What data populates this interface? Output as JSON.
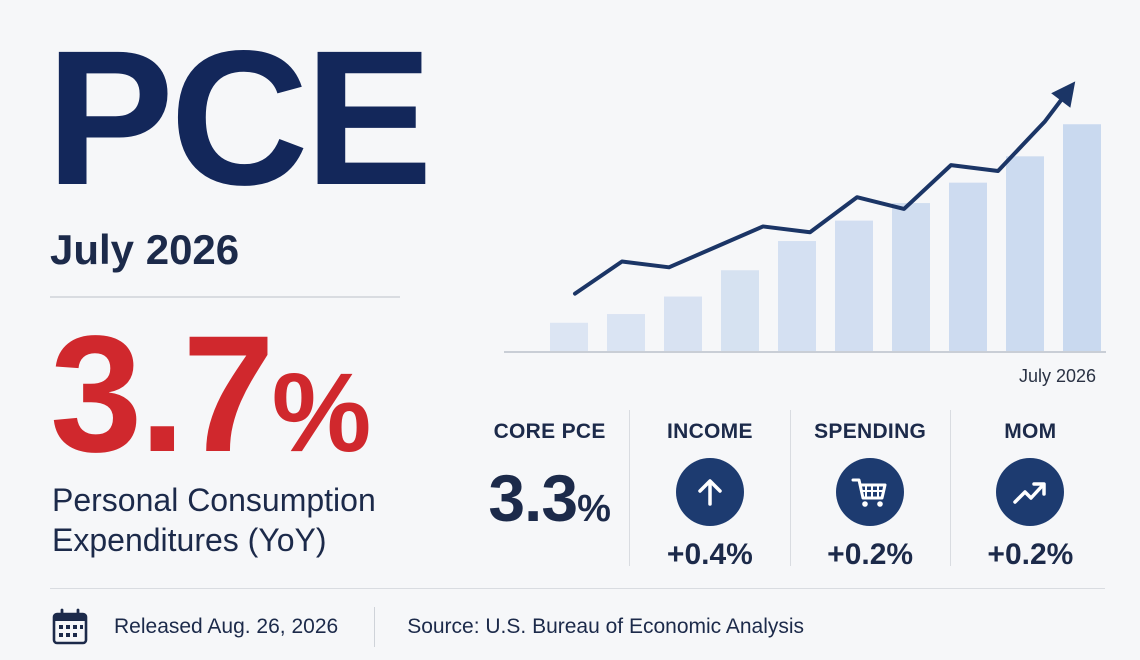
{
  "headline": {
    "title": "PCE",
    "period": "July 2026"
  },
  "main_metric": {
    "value": "3.7",
    "unit": "%",
    "description_line1": "Personal Consumption",
    "description_line2": "Expenditures (YoY)"
  },
  "kpis": [
    {
      "label": "CORE PCE",
      "value": "3.3",
      "unit": "%"
    },
    {
      "label": "INCOME",
      "change": "+0.4%",
      "icon": "arrow-up-icon"
    },
    {
      "label": "SPENDING",
      "change": "+0.2%",
      "icon": "cart-icon"
    },
    {
      "label": "MOM",
      "change": "+0.2%",
      "icon": "trend-up-icon"
    }
  ],
  "footer": {
    "released": "Released Aug. 26, 2026",
    "source": "Source: U.S. Bureau of Economic Analysis",
    "icon": "calendar-icon"
  },
  "colors": {
    "navy": "#13275a",
    "red": "#d0282d",
    "bar": "#c7d7ee",
    "line": "#1b3566"
  },
  "chart_data": {
    "type": "bar",
    "x_label_end": "July 2026",
    "bars": [
      1.0,
      1.3,
      1.9,
      2.8,
      3.8,
      4.5,
      5.1,
      5.8,
      6.7,
      7.8
    ],
    "line": [
      2.0,
      3.1,
      2.9,
      3.6,
      4.3,
      4.1,
      5.3,
      4.9,
      6.4,
      6.2,
      7.9
    ],
    "ylim": [
      0,
      10
    ],
    "arrow_on_line": true,
    "grid": false,
    "legend": false
  }
}
